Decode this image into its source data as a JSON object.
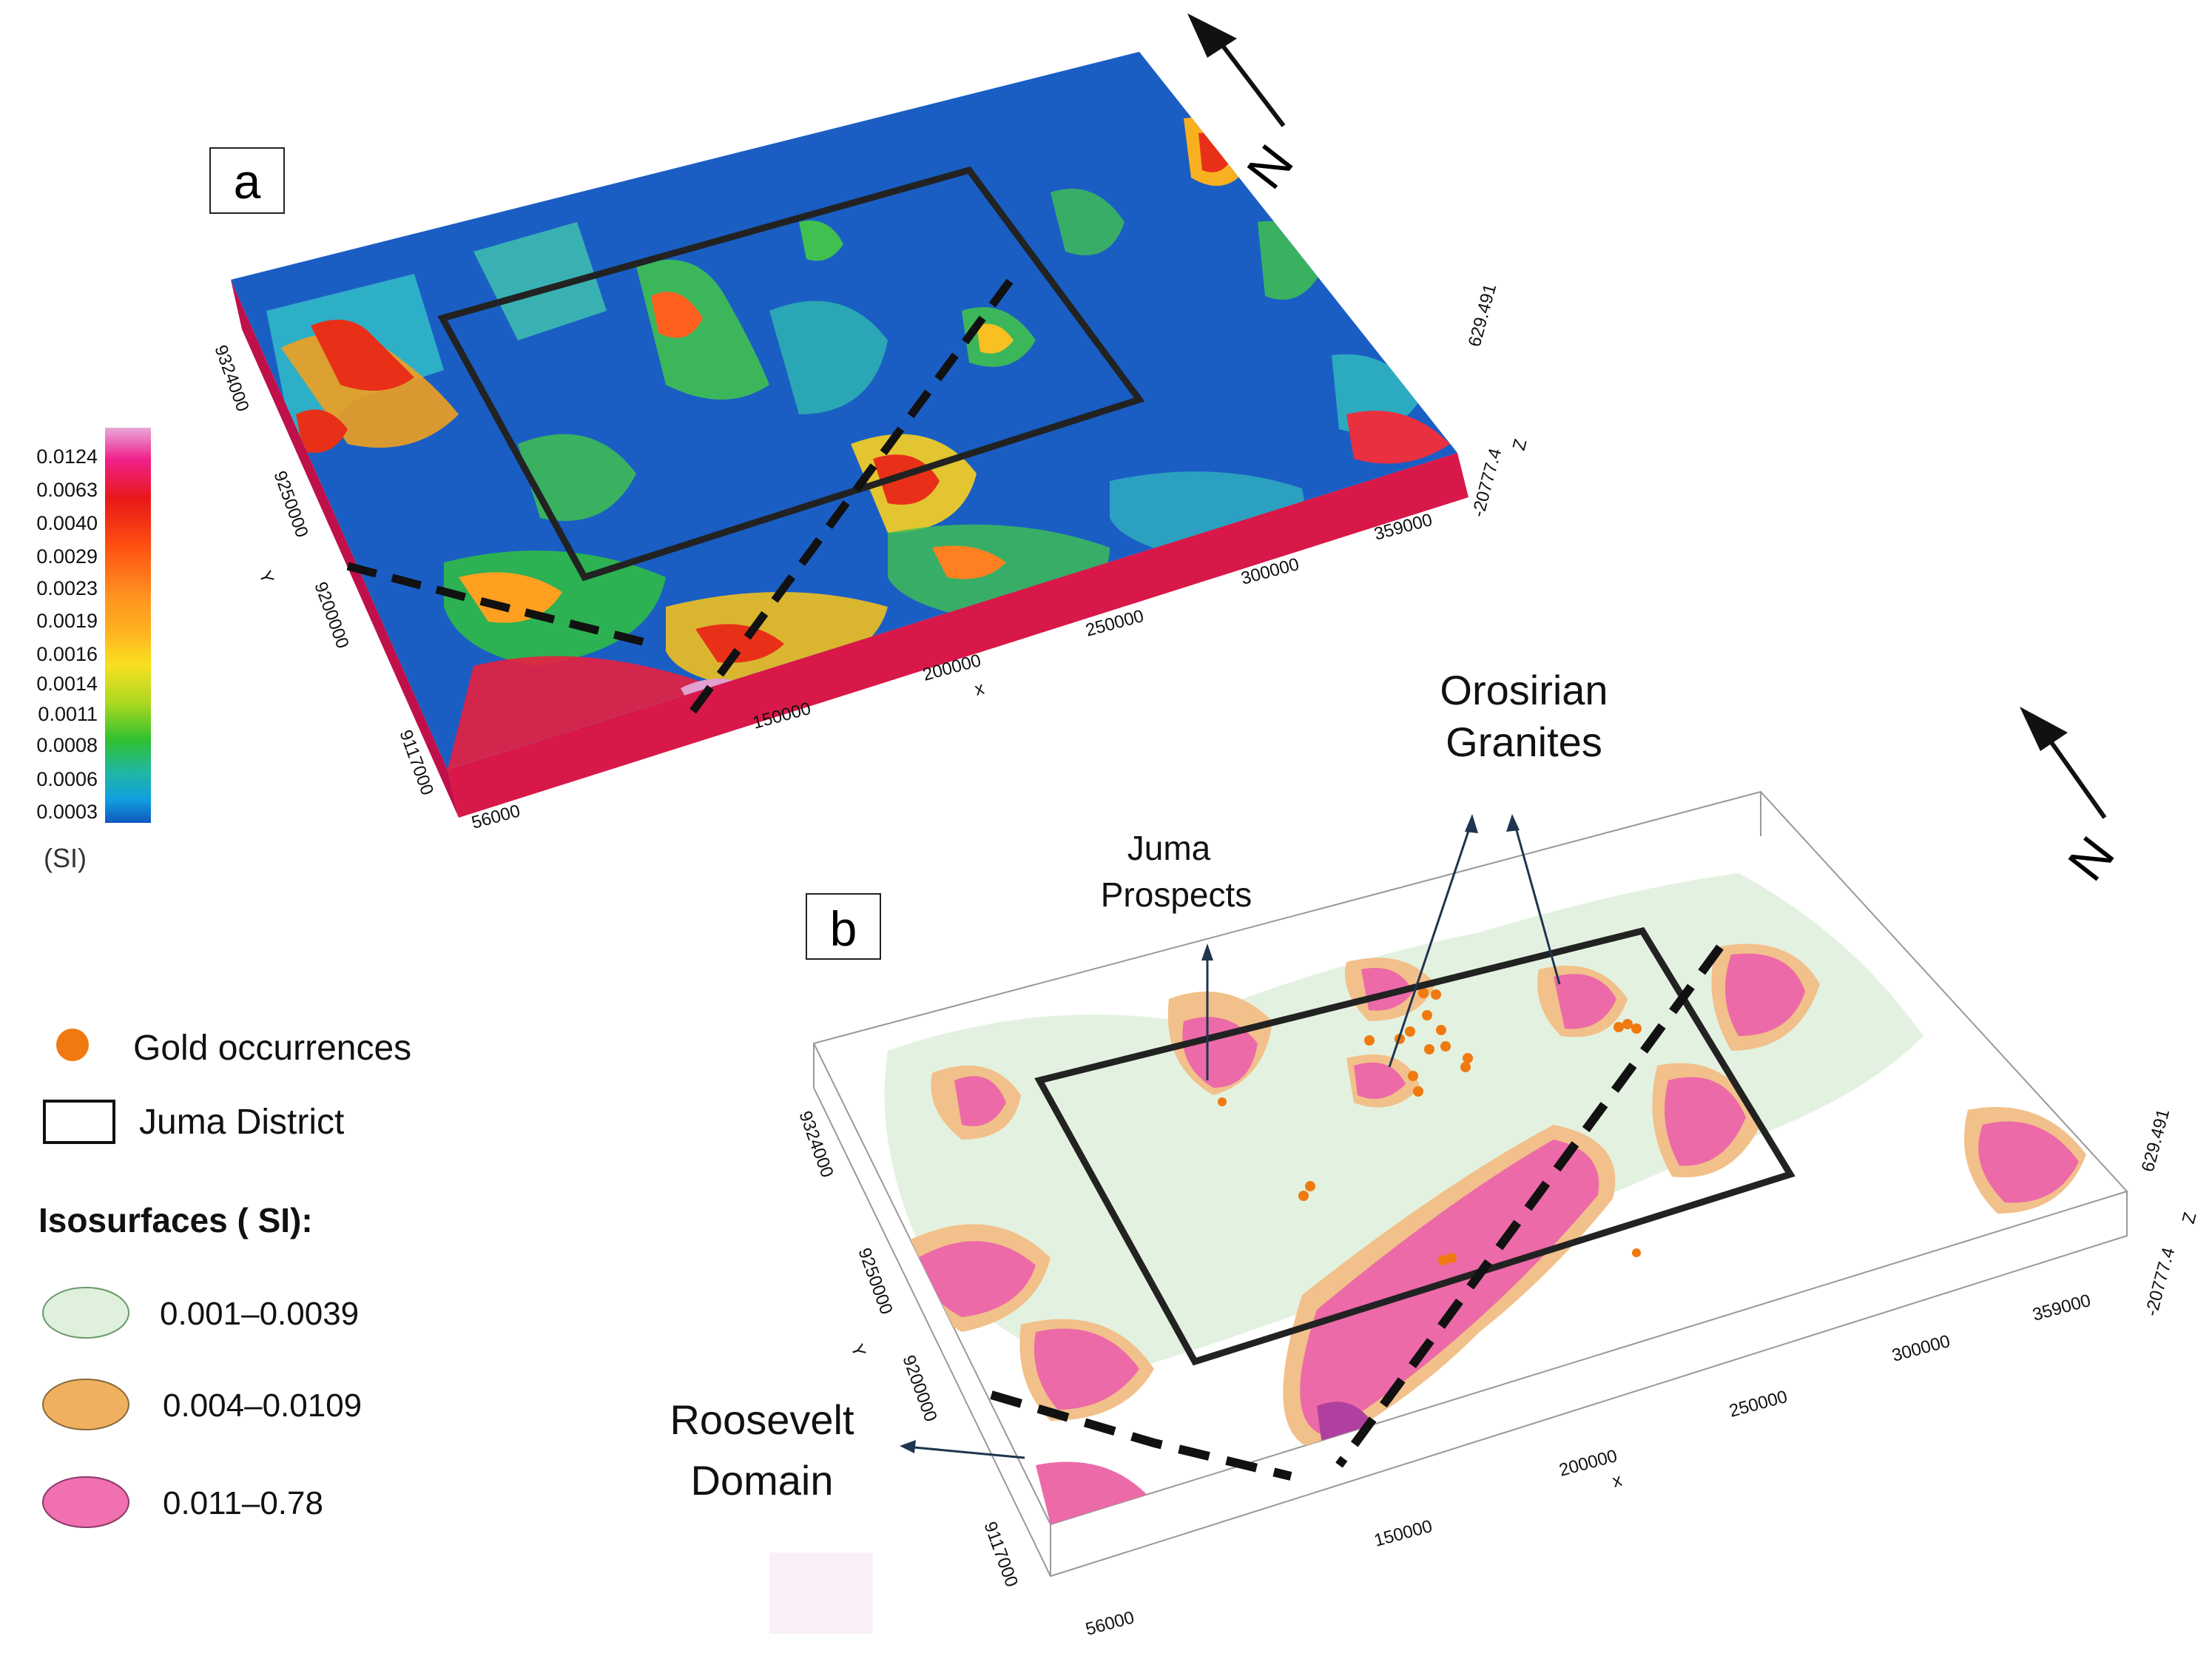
{
  "panels": {
    "a": {
      "label": "a"
    },
    "b": {
      "label": "b"
    }
  },
  "north_label": "N",
  "colorbar": {
    "ticks": [
      "0.0124",
      "0.0063",
      "0.0040",
      "0.0029",
      "0.0023",
      "0.0019",
      "0.0016",
      "0.0014",
      "0.0011",
      "0.0008",
      "0.0006",
      "0.0003"
    ],
    "unit": "(SI)",
    "colors": [
      "#e8a8d8",
      "#f0208c",
      "#e81818",
      "#ff5010",
      "#ff9020",
      "#ffb420",
      "#f8e020",
      "#a8d820",
      "#30c030",
      "#20b8a0",
      "#10a0e0",
      "#1058c0"
    ]
  },
  "axes": {
    "x_ticks": [
      "56000",
      "150000",
      "200000",
      "250000",
      "300000",
      "359000"
    ],
    "x_label": "x",
    "y_ticks": [
      "9324000",
      "9250000",
      "9200000",
      "9117000"
    ],
    "y_label": "Y",
    "z_ticks": [
      "629.491",
      "-20777.4"
    ],
    "z_label": "Z"
  },
  "annotations": {
    "orosirian": [
      "Orosirian",
      "Granites"
    ],
    "juma_prospects": [
      "Juma",
      "Prospects"
    ],
    "roosevelt": [
      "Roosevelt",
      "Domain"
    ]
  },
  "legend": {
    "gold": "Gold occurrences",
    "district": "Juma District",
    "iso_title": "Isosurfaces ( SI):",
    "iso_items": [
      {
        "label": "0.001–0.0039",
        "color": "#dff0dc"
      },
      {
        "label": "0.004–0.0109",
        "color": "#f0b060"
      },
      {
        "label": "0.011–0.78",
        "color": "#f070b0"
      }
    ],
    "gold_color": "#f07a10"
  }
}
